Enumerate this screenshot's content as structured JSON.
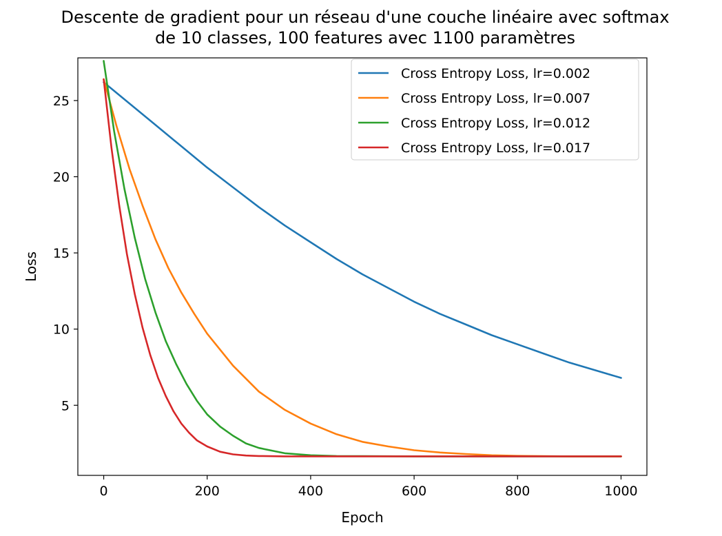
{
  "chart_data": {
    "type": "line",
    "title": "Descente de gradient pour un réseau d'une couche linéaire avec softmax\nde 10 classes, 100 features avec 1100 paramètres",
    "title_lines": [
      "Descente de gradient pour un réseau d'une couche linéaire avec softmax",
      "de 10 classes, 100 features avec 1100 paramètres"
    ],
    "xlabel": "Epoch",
    "ylabel": "Loss",
    "xlim": [
      -50,
      1050
    ],
    "ylim": [
      0.4,
      27.8
    ],
    "xticks": [
      0,
      200,
      400,
      600,
      800,
      1000
    ],
    "yticks": [
      5,
      10,
      15,
      20,
      25
    ],
    "grid": false,
    "legend_position": "top-right",
    "series": [
      {
        "name": "Cross Entropy Loss, lr=0.002",
        "color": "#1f77b4",
        "x": [
          0,
          50,
          100,
          150,
          200,
          250,
          300,
          350,
          400,
          450,
          500,
          550,
          600,
          650,
          700,
          750,
          800,
          850,
          900,
          950,
          1000
        ],
        "y": [
          26.2,
          24.8,
          23.4,
          22.0,
          20.6,
          19.3,
          18.0,
          16.8,
          15.7,
          14.6,
          13.6,
          12.7,
          11.8,
          11.0,
          10.3,
          9.6,
          9.0,
          8.4,
          7.8,
          7.3,
          6.8
        ]
      },
      {
        "name": "Cross Entropy Loss, lr=0.007",
        "color": "#ff7f0e",
        "x": [
          0,
          25,
          50,
          75,
          100,
          125,
          150,
          175,
          200,
          250,
          300,
          350,
          400,
          450,
          500,
          550,
          600,
          650,
          700,
          750,
          800,
          850,
          900,
          950,
          1000
        ],
        "y": [
          26.4,
          23.3,
          20.5,
          18.1,
          15.9,
          14.0,
          12.4,
          11.0,
          9.7,
          7.6,
          5.9,
          4.7,
          3.8,
          3.1,
          2.6,
          2.3,
          2.05,
          1.9,
          1.8,
          1.72,
          1.68,
          1.66,
          1.65,
          1.65,
          1.65
        ]
      },
      {
        "name": "Cross Entropy Loss, lr=0.012",
        "color": "#2ca02c",
        "x": [
          0,
          20,
          40,
          60,
          80,
          100,
          120,
          140,
          160,
          180,
          200,
          225,
          250,
          275,
          300,
          350,
          400,
          450,
          500,
          600,
          700,
          800,
          900,
          1000
        ],
        "y": [
          27.6,
          23.0,
          19.2,
          16.0,
          13.3,
          11.1,
          9.2,
          7.7,
          6.4,
          5.3,
          4.4,
          3.6,
          3.0,
          2.5,
          2.2,
          1.85,
          1.72,
          1.67,
          1.66,
          1.65,
          1.65,
          1.65,
          1.65,
          1.65
        ]
      },
      {
        "name": "Cross Entropy Loss, lr=0.017",
        "color": "#d62728",
        "x": [
          0,
          15,
          30,
          45,
          60,
          75,
          90,
          105,
          120,
          135,
          150,
          165,
          180,
          200,
          225,
          250,
          275,
          300,
          350,
          400,
          500,
          600,
          700,
          800,
          900,
          1000
        ],
        "y": [
          26.4,
          21.9,
          18.1,
          14.9,
          12.3,
          10.1,
          8.3,
          6.8,
          5.6,
          4.6,
          3.8,
          3.2,
          2.7,
          2.3,
          1.95,
          1.78,
          1.7,
          1.67,
          1.65,
          1.65,
          1.65,
          1.65,
          1.65,
          1.65,
          1.65,
          1.65
        ]
      }
    ]
  }
}
